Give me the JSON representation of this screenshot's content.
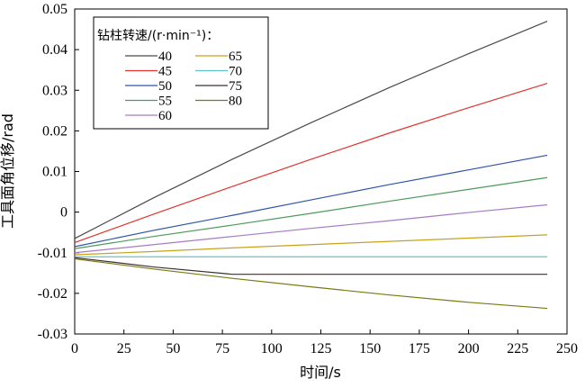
{
  "chart_data": {
    "type": "line",
    "title": "",
    "xlabel": "时间/s",
    "ylabel": "工具面角位移/rad",
    "xlim": [
      0,
      250
    ],
    "ylim": [
      -0.03,
      0.05
    ],
    "x_ticks": [
      0,
      25,
      50,
      75,
      100,
      125,
      150,
      175,
      200,
      225,
      250
    ],
    "y_ticks": [
      0.05,
      0.04,
      0.03,
      0.02,
      0.01,
      0,
      -0.01,
      -0.02,
      -0.03
    ],
    "x_tick_labels": [
      "0",
      "25",
      "50",
      "75",
      "100",
      "125",
      "150",
      "175",
      "200",
      "225",
      "250"
    ],
    "y_tick_labels": [
      "0.05",
      "0.04",
      "0.03",
      "0.02",
      "0.01",
      "0",
      "-0.01",
      "-0.02",
      "-0.03"
    ],
    "grid": false,
    "legend": {
      "title": "钻柱转速/(r·min⁻¹)：",
      "position": "top-left",
      "columns": 2
    },
    "series": [
      {
        "name": "40",
        "color": "#4a4a4a",
        "x": [
          0,
          40,
          80,
          120,
          160,
          200,
          240
        ],
        "y": [
          -0.0065,
          0.0035,
          0.013,
          0.022,
          0.0307,
          0.039,
          0.047
        ]
      },
      {
        "name": "45",
        "color": "#e0342f",
        "x": [
          0,
          40,
          80,
          120,
          160,
          200,
          240
        ],
        "y": [
          -0.0075,
          -0.0005,
          0.0063,
          0.013,
          0.0195,
          0.0257,
          0.0317
        ]
      },
      {
        "name": "50",
        "color": "#2e55a8",
        "x": [
          0,
          40,
          80,
          120,
          160,
          200,
          240
        ],
        "y": [
          -0.0085,
          -0.0045,
          -0.0008,
          0.003,
          0.0068,
          0.0104,
          0.014
        ]
      },
      {
        "name": "55",
        "color": "#4e9a5a",
        "x": [
          0,
          40,
          80,
          120,
          160,
          200,
          240
        ],
        "y": [
          -0.009,
          -0.006,
          -0.0032,
          -0.0003,
          0.0027,
          0.0056,
          0.0085
        ]
      },
      {
        "name": "60",
        "color": "#a67bc4",
        "x": [
          0,
          40,
          80,
          120,
          160,
          200,
          240
        ],
        "y": [
          -0.01,
          -0.008,
          -0.006,
          -0.004,
          -0.0021,
          -0.0001,
          0.0018
        ]
      },
      {
        "name": "65",
        "color": "#c8a21c",
        "x": [
          0,
          40,
          80,
          120,
          160,
          200,
          240
        ],
        "y": [
          -0.0105,
          -0.0097,
          -0.0088,
          -0.008,
          -0.0072,
          -0.0064,
          -0.0056
        ]
      },
      {
        "name": "70",
        "color": "#5fc4c8",
        "x": [
          0,
          40,
          80,
          120,
          160,
          200,
          240
        ],
        "y": [
          -0.011,
          -0.011,
          -0.011,
          -0.011,
          -0.011,
          -0.011,
          -0.011
        ]
      },
      {
        "name": "75",
        "color": "#3a3030",
        "x": [
          0,
          40,
          80,
          120,
          160,
          200,
          240
        ],
        "y": [
          -0.0112,
          -0.0135,
          -0.0153,
          -0.0153,
          -0.0153,
          -0.0153,
          -0.0153
        ]
      },
      {
        "name": "80",
        "color": "#7a7a10",
        "x": [
          0,
          40,
          80,
          120,
          160,
          200,
          240
        ],
        "y": [
          -0.0115,
          -0.014,
          -0.0163,
          -0.0184,
          -0.0204,
          -0.0222,
          -0.0237
        ]
      }
    ]
  }
}
